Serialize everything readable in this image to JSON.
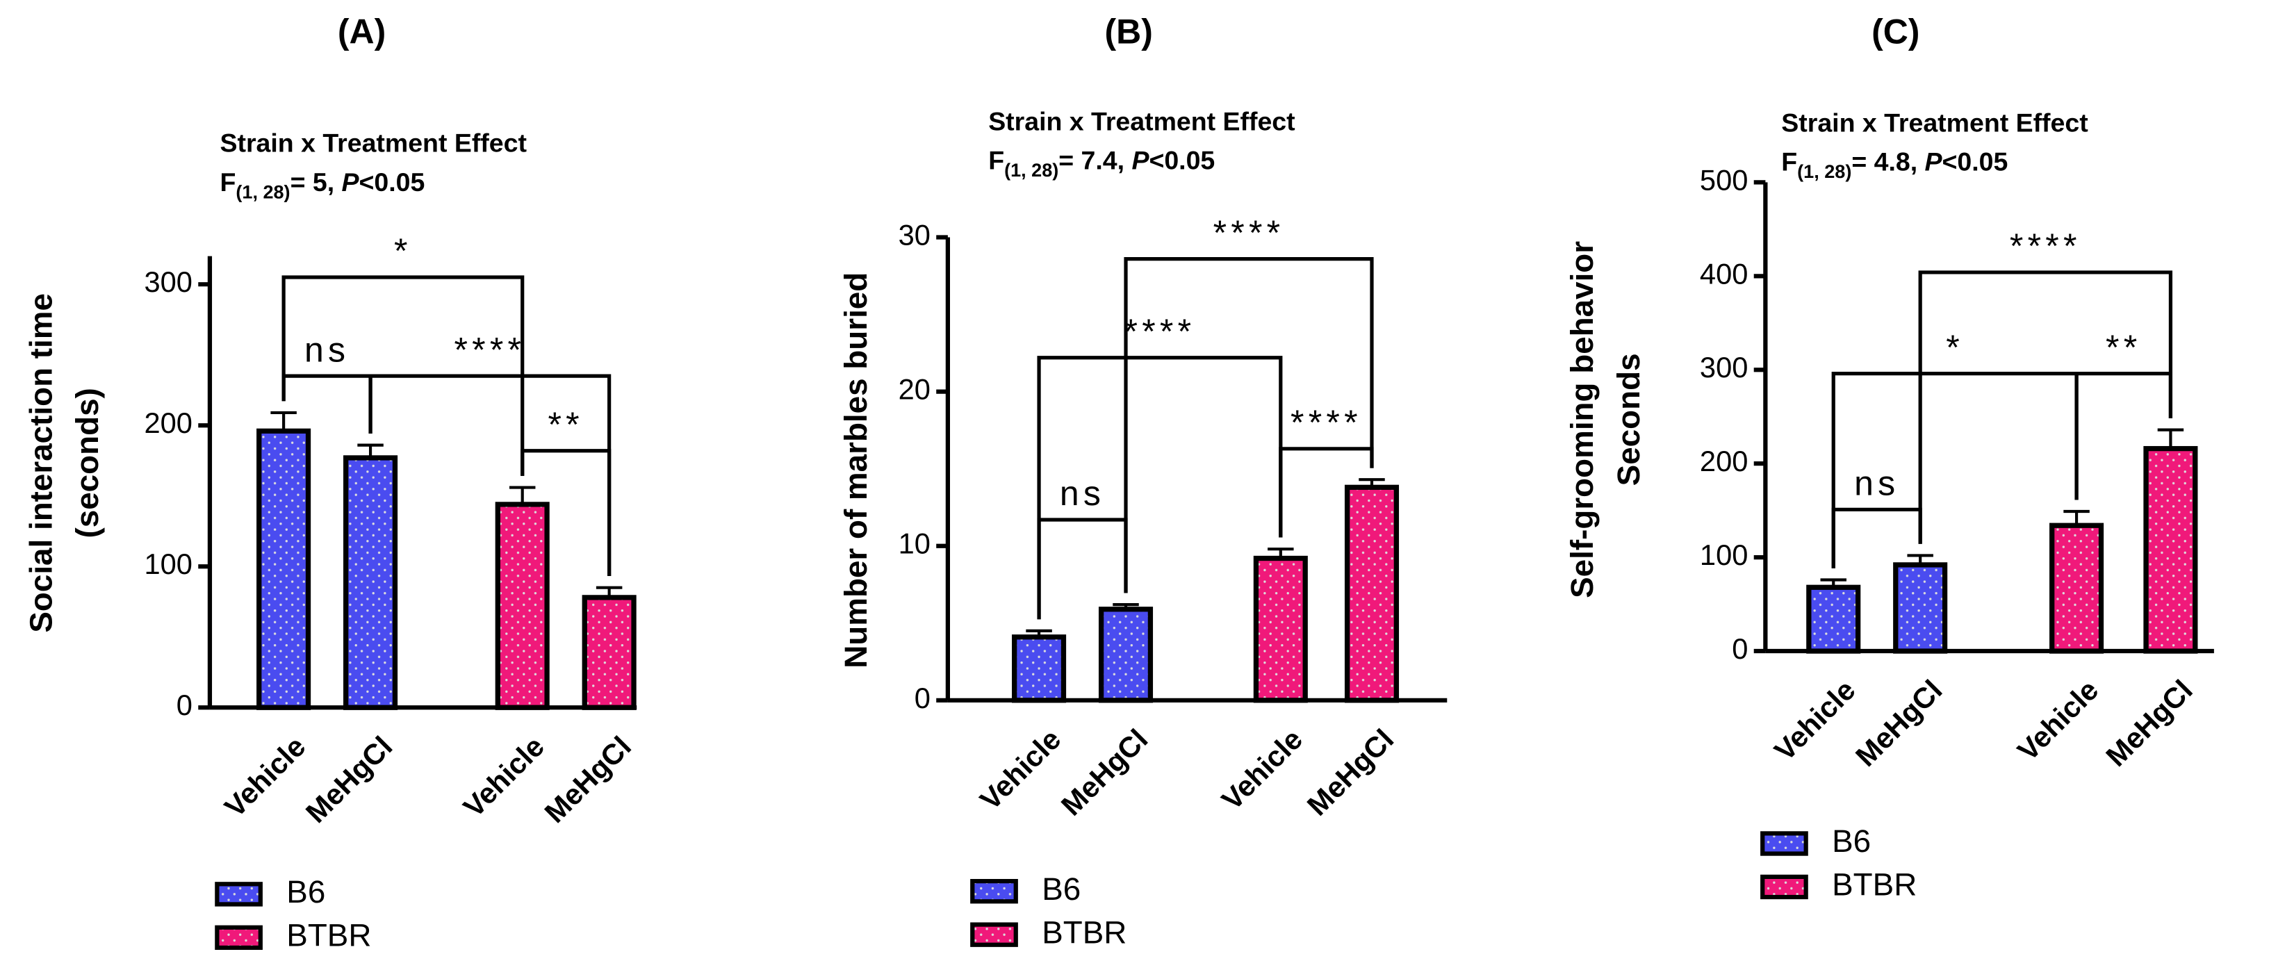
{
  "chart_data": [
    {
      "type": "bar",
      "panel": "(A)",
      "title": "Strain x Treatment Effect",
      "stat": {
        "f": "F",
        "df": "(1, 28)",
        "value": "= 5, ",
        "p": "P",
        "threshold": "<0.05"
      },
      "ylabel": [
        "Social interaction time",
        "(seconds)"
      ],
      "categories": [
        "Vehicle",
        "MeHgCl",
        "Vehicle",
        "MeHgCl"
      ],
      "series": [
        {
          "name": "B6",
          "color": "#4a4cf0",
          "values": [
            196,
            177,
            null,
            null
          ],
          "errors": [
            13,
            9,
            null,
            null
          ]
        },
        {
          "name": "BTBR",
          "color": "#f0197a",
          "values": [
            null,
            null,
            144,
            78
          ],
          "errors": [
            null,
            null,
            12,
            7
          ]
        }
      ],
      "ylim": [
        0,
        320
      ],
      "yticks": [
        0,
        100,
        200,
        300
      ],
      "annotations": [
        {
          "from": 0,
          "to": 1,
          "label": "ns"
        },
        {
          "from": 0,
          "to": 2,
          "label": "*"
        },
        {
          "from": 1,
          "to": 3,
          "label": "****"
        },
        {
          "from": 2,
          "to": 3,
          "label": "**"
        }
      ]
    },
    {
      "type": "bar",
      "panel": "(B)",
      "title": "Strain x Treatment Effect",
      "stat": {
        "f": "F",
        "df": "(1, 28)",
        "value": "= 7.4, ",
        "p": "P",
        "threshold": "<0.05"
      },
      "ylabel": [
        "Number of marbles buried"
      ],
      "categories": [
        "Vehicle",
        "MeHgCl",
        "Vehicle",
        "MeHgCl"
      ],
      "series": [
        {
          "name": "B6",
          "color": "#4a4cf0",
          "values": [
            4.1,
            5.9,
            null,
            null
          ],
          "errors": [
            0.4,
            0.3,
            null,
            null
          ]
        },
        {
          "name": "BTBR",
          "color": "#f0197a",
          "values": [
            null,
            null,
            9.2,
            13.8
          ],
          "errors": [
            null,
            null,
            0.6,
            0.5
          ]
        }
      ],
      "ylim": [
        0,
        30
      ],
      "yticks": [
        0,
        10,
        20,
        30
      ],
      "annotations": [
        {
          "from": 0,
          "to": 1,
          "label": "ns"
        },
        {
          "from": 0,
          "to": 2,
          "label": "****"
        },
        {
          "from": 1,
          "to": 3,
          "label": "****"
        },
        {
          "from": 2,
          "to": 3,
          "label": "****"
        }
      ]
    },
    {
      "type": "bar",
      "panel": "(C)",
      "title": "Strain x Treatment Effect",
      "stat": {
        "f": "F",
        "df": "(1, 28)",
        "value": "= 4.8, ",
        "p": "P",
        "threshold": "<0.05"
      },
      "ylabel": [
        "Self-grooming behavior",
        "Seconds"
      ],
      "categories": [
        "Vehicle",
        "MeHgCl",
        "Vehicle",
        "MeHgCl"
      ],
      "series": [
        {
          "name": "B6",
          "color": "#4a4cf0",
          "values": [
            68,
            92,
            null,
            null
          ],
          "errors": [
            8,
            10,
            null,
            null
          ]
        },
        {
          "name": "BTBR",
          "color": "#f0197a",
          "values": [
            null,
            null,
            134,
            216
          ],
          "errors": [
            null,
            null,
            15,
            20
          ]
        }
      ],
      "ylim": [
        0,
        500
      ],
      "yticks": [
        0,
        100,
        200,
        300,
        400,
        500
      ],
      "annotations": [
        {
          "from": 0,
          "to": 1,
          "label": "ns"
        },
        {
          "from": 0,
          "to": 2,
          "label": "*"
        },
        {
          "from": 1,
          "to": 3,
          "label": "****"
        },
        {
          "from": 2,
          "to": 3,
          "label": "**"
        }
      ]
    }
  ]
}
